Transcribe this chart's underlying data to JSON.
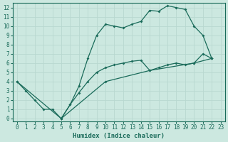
{
  "xlabel": "Humidex (Indice chaleur)",
  "bg_color": "#cce8e0",
  "grid_color": "#b8d8d0",
  "line_color": "#1a6b5a",
  "xlim": [
    -0.5,
    23.5
  ],
  "ylim": [
    -0.3,
    12.5
  ],
  "xticks": [
    0,
    1,
    2,
    3,
    4,
    5,
    6,
    7,
    8,
    9,
    10,
    11,
    12,
    13,
    14,
    15,
    16,
    17,
    18,
    19,
    20,
    21,
    22,
    23
  ],
  "yticks": [
    0,
    1,
    2,
    3,
    4,
    5,
    6,
    7,
    8,
    9,
    10,
    11,
    12
  ],
  "line1": [
    [
      0,
      4
    ],
    [
      1,
      3
    ],
    [
      2,
      2
    ],
    [
      3,
      1
    ],
    [
      4,
      1
    ],
    [
      5,
      0
    ],
    [
      6,
      1.5
    ],
    [
      7,
      3.5
    ],
    [
      8,
      6.5
    ],
    [
      9,
      9
    ],
    [
      10,
      10.2
    ],
    [
      11,
      10
    ],
    [
      12,
      9.8
    ],
    [
      13,
      10.2
    ],
    [
      14,
      10.5
    ],
    [
      15,
      11.7
    ],
    [
      16,
      11.6
    ],
    [
      17,
      12.2
    ],
    [
      18,
      12.0
    ],
    [
      19,
      11.8
    ],
    [
      20,
      10
    ],
    [
      21,
      9
    ],
    [
      22,
      6.5
    ]
  ],
  "line2": [
    [
      0,
      4
    ],
    [
      5,
      0
    ],
    [
      10,
      4
    ],
    [
      15,
      5.2
    ],
    [
      20,
      6.0
    ],
    [
      22,
      6.5
    ]
  ],
  "line3": [
    [
      5,
      0
    ],
    [
      6,
      1.5
    ],
    [
      7,
      2.8
    ],
    [
      8,
      4.0
    ],
    [
      9,
      5.0
    ],
    [
      10,
      5.5
    ],
    [
      11,
      5.8
    ],
    [
      12,
      6.0
    ],
    [
      13,
      6.2
    ],
    [
      14,
      6.3
    ],
    [
      15,
      5.2
    ],
    [
      16,
      5.5
    ],
    [
      17,
      5.8
    ],
    [
      18,
      6.0
    ],
    [
      19,
      5.8
    ],
    [
      20,
      6.0
    ],
    [
      21,
      7.0
    ],
    [
      22,
      6.5
    ]
  ]
}
